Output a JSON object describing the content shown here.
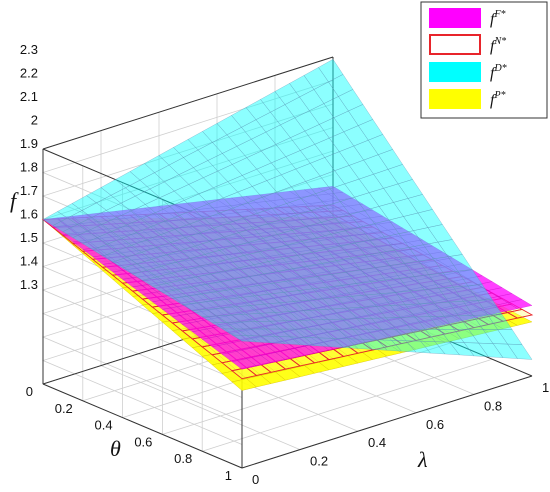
{
  "chart_data": {
    "type": "surface3d",
    "axes": {
      "x": {
        "label": "λ",
        "ticks": [
          "0",
          "0.2",
          "0.4",
          "0.6",
          "0.8",
          "1"
        ],
        "range": [
          0,
          1
        ]
      },
      "y": {
        "label": "θ",
        "ticks": [
          "0",
          "0.2",
          "0.4",
          "0.6",
          "0.8",
          "1"
        ],
        "range": [
          0,
          1
        ]
      },
      "z": {
        "label": "f",
        "ticks": [
          "1.3",
          "1.4",
          "1.5",
          "1.6",
          "1.7",
          "1.8",
          "1.9",
          "2",
          "2.1",
          "2.2",
          "2.3"
        ],
        "range": [
          1.3,
          2.3
        ]
      }
    },
    "legend": {
      "position": "top-right",
      "entries": [
        {
          "base": "f",
          "sup": "F*",
          "color": "#ff00ff",
          "style": "filled"
        },
        {
          "base": "f",
          "sup": "N*",
          "color": "#e8242b",
          "style": "outline"
        },
        {
          "base": "f",
          "sup": "D*",
          "color": "#00ffff",
          "style": "filled"
        },
        {
          "base": "f",
          "sup": "P*",
          "color": "#ffff00",
          "style": "filled"
        }
      ]
    },
    "series": [
      {
        "name": "fF*",
        "color": "#ff00ff",
        "corners": {
          "l0t0": 2.0,
          "l1t0": 1.75,
          "l0t1": 1.72,
          "l1t1": 1.6
        }
      },
      {
        "name": "fN*",
        "color": "#e8242b",
        "corners": {
          "l0t0": 2.0,
          "l1t0": 1.67,
          "l0t1": 1.68,
          "l1t1": 1.56
        }
      },
      {
        "name": "fD*",
        "color": "#00ffff",
        "corners": {
          "l0t0": 2.0,
          "l1t0": 2.29,
          "l0t1": 1.84,
          "l1t1": 1.37
        }
      },
      {
        "name": "fP*",
        "color": "#ffff00",
        "corners": {
          "l0t0": 2.0,
          "l1t0": 1.62,
          "l0t1": 1.63,
          "l1t1": 1.53
        }
      }
    ],
    "grid": true
  }
}
